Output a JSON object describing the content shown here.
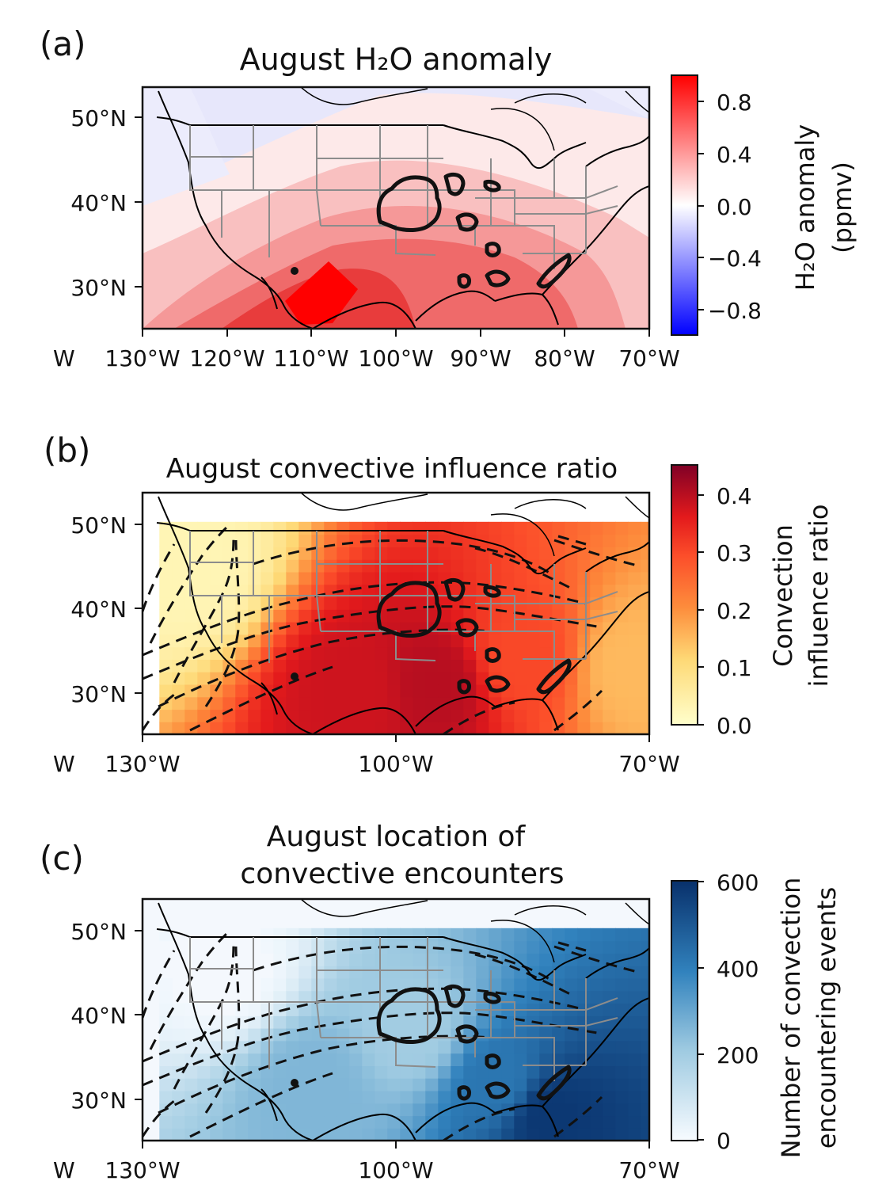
{
  "chart_data": [
    {
      "type": "heatmap",
      "panel_label": "(a)",
      "title": "August H₂O anomaly",
      "x_ticks": [
        "W",
        "130°W",
        "120°W",
        "110°W",
        "100°W",
        "90°W",
        "80°W",
        "70°W"
      ],
      "y_ticks": [
        "50°N",
        "40°N",
        "30°N"
      ],
      "lon_range": [
        -130,
        -70
      ],
      "lat_range": [
        25,
        54
      ],
      "colorbar": {
        "label_lines": [
          "H₂O anomaly",
          "(ppmv)"
        ],
        "ticks": [
          "0.8",
          "0.4",
          "0.0",
          "−0.4",
          "−0.8"
        ],
        "range": [
          -1.0,
          1.0
        ],
        "colormap": "bwr"
      },
      "field_samples": [
        {
          "lon": -125,
          "lat": 50,
          "value": -0.1
        },
        {
          "lon": -72,
          "lat": 50,
          "value": -0.1
        },
        {
          "lon": -125,
          "lat": 30,
          "value": 0.3
        },
        {
          "lon": -108,
          "lat": 28,
          "value": 0.9
        },
        {
          "lon": -100,
          "lat": 33,
          "value": 0.7
        },
        {
          "lon": -90,
          "lat": 35,
          "value": 0.5
        },
        {
          "lon": -75,
          "lat": 30,
          "value": 0.2
        }
      ],
      "overlay": "bold black contours: convective hotspot regions over the central US"
    },
    {
      "type": "heatmap",
      "panel_label": "(b)",
      "title": "August convective influence ratio",
      "x_ticks": [
        "W",
        "130°W",
        "100°W",
        "70°W"
      ],
      "y_ticks": [
        "50°N",
        "40°N",
        "30°N"
      ],
      "lon_range": [
        -130,
        -70
      ],
      "lat_range": [
        25,
        54
      ],
      "colorbar": {
        "label_lines": [
          "Convection",
          "influence ratio"
        ],
        "ticks": [
          "0.4",
          "0.3",
          "0.2",
          "0.1",
          "0.0"
        ],
        "range": [
          0.0,
          0.45
        ],
        "colormap": "YlOrRd"
      },
      "field_samples": [
        {
          "lon": -125,
          "lat": 45,
          "value": 0.03
        },
        {
          "lon": -105,
          "lat": 30,
          "value": 0.38
        },
        {
          "lon": -95,
          "lat": 31,
          "value": 0.4
        },
        {
          "lon": -85,
          "lat": 34,
          "value": 0.3
        },
        {
          "lon": -72,
          "lat": 33,
          "value": 0.15
        }
      ],
      "overlay": "dashed black trajectory lines and bold black hotspot contours"
    },
    {
      "type": "heatmap",
      "panel_label": "(c)",
      "title_lines": [
        "August location of",
        "convective encounters"
      ],
      "x_ticks": [
        "W",
        "130°W",
        "100°W",
        "70°W"
      ],
      "y_ticks": [
        "50°N",
        "40°N",
        "30°N"
      ],
      "lon_range": [
        -130,
        -70
      ],
      "lat_range": [
        25,
        54
      ],
      "colorbar": {
        "label_lines": [
          "Number of convection",
          "encountering events"
        ],
        "ticks": [
          "600",
          "400",
          "200",
          "0"
        ],
        "range": [
          0,
          600
        ],
        "colormap": "Blues"
      },
      "field_samples": [
        {
          "lon": -120,
          "lat": 45,
          "value": 10
        },
        {
          "lon": -98,
          "lat": 38,
          "value": 200
        },
        {
          "lon": -88,
          "lat": 32,
          "value": 420
        },
        {
          "lon": -82,
          "lat": 28,
          "value": 580
        },
        {
          "lon": -110,
          "lat": 32,
          "value": 260
        }
      ],
      "overlay": "dashed black trajectory lines and bold black hotspot contours"
    }
  ]
}
